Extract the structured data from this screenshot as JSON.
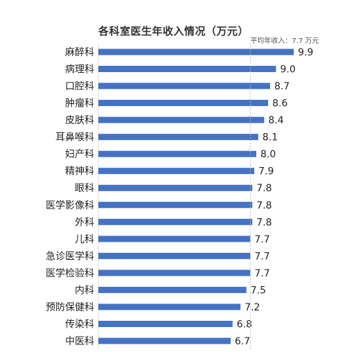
{
  "chart_data": {
    "type": "bar",
    "orientation": "horizontal",
    "title": "各科室医生年收入情况（万元）",
    "categories": [
      "麻醉科",
      "病理科",
      "口腔科",
      "肿瘤科",
      "皮肤科",
      "耳鼻喉科",
      "妇产科",
      "精神科",
      "眼科",
      "医学影像科",
      "外科",
      "儿科",
      "急诊医学科",
      "医学检验科",
      "内科",
      "预防保健科",
      "传染科",
      "中医科"
    ],
    "series": [
      {
        "values": [
          9.9,
          9.0,
          8.7,
          8.6,
          8.4,
          8.1,
          8.0,
          7.9,
          7.8,
          7.8,
          7.8,
          7.7,
          7.7,
          7.7,
          7.5,
          7.2,
          6.8,
          6.7
        ]
      }
    ],
    "value_labels": [
      "9.9",
      "9.0",
      "8.7",
      "8.6",
      "8.4",
      "8.1",
      "8.0",
      "7.9",
      "7.8",
      "7.8",
      "7.8",
      "7.7",
      "7.7",
      "7.7",
      "7.5",
      "7.2",
      "6.8",
      "6.7"
    ],
    "reference_line": {
      "value": 7.7,
      "label": "平均年收入：7.7 万元",
      "style": "dashed"
    },
    "xlim": [
      0,
      10
    ],
    "grid": false,
    "legend": "none",
    "colors": {
      "bar": "#4472C4",
      "reference_line": "#BBBBBB",
      "axis": "#D9D9D9"
    }
  }
}
